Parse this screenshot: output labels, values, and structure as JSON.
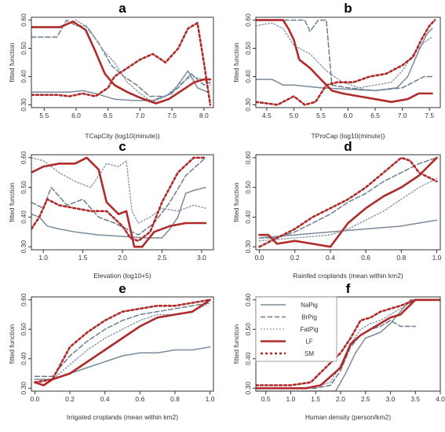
{
  "figure": {
    "ylabel": "fitted function",
    "legend_title": "",
    "colors": {
      "NaPig": "#7a8a9a",
      "BrPig": "#6b7d90",
      "FatPig": "#8795a5",
      "LF": "#b02a2a",
      "SM": "#b02a2a"
    }
  },
  "legend": {
    "items": [
      {
        "name": "NaPig",
        "style": "solid-thin",
        "color": "#7a8a9a"
      },
      {
        "name": "BrPig",
        "style": "dashed",
        "color": "#6b7d90"
      },
      {
        "name": "FatPig",
        "style": "dotted",
        "color": "#8795a5"
      },
      {
        "name": "LF",
        "style": "solid-thick",
        "color": "#b02a2a"
      },
      {
        "name": "SM",
        "style": "dotted-thick",
        "color": "#b02a2a"
      }
    ]
  },
  "chart_data": [
    {
      "panel": "a",
      "type": "line",
      "xlabel": "TCapCity (log10(minute))",
      "ylabel": "fitted function",
      "xlim": [
        5.3,
        8.15
      ],
      "ylim": [
        0.29,
        0.61
      ],
      "xticks": [
        "5.5",
        "6.0",
        "6.5",
        "7.0",
        "7.5",
        "8.0"
      ],
      "yticks": [
        "0.30",
        "0.40",
        "0.50",
        "0.60"
      ],
      "series": [
        {
          "name": "NaPig",
          "x": [
            5.3,
            5.6,
            5.9,
            6.1,
            6.3,
            6.6,
            6.9,
            7.2,
            7.5,
            7.75,
            7.9,
            8.05
          ],
          "y": [
            0.345,
            0.345,
            0.345,
            0.35,
            0.34,
            0.32,
            0.315,
            0.315,
            0.34,
            0.42,
            0.36,
            0.345
          ]
        },
        {
          "name": "BrPig",
          "x": [
            5.3,
            5.7,
            5.85,
            6.0,
            6.15,
            6.35,
            6.55,
            6.75,
            6.95,
            7.15,
            7.4,
            7.6,
            7.8,
            8.0,
            8.1
          ],
          "y": [
            0.54,
            0.54,
            0.6,
            0.58,
            0.58,
            0.52,
            0.44,
            0.4,
            0.37,
            0.33,
            0.33,
            0.36,
            0.41,
            0.37,
            0.38
          ]
        },
        {
          "name": "FatPig",
          "x": [
            5.9,
            6.0,
            6.2,
            6.4,
            6.6,
            6.8,
            7.0,
            7.2,
            7.4,
            7.6,
            7.8,
            8.0,
            8.1
          ],
          "y": [
            0.59,
            0.6,
            0.57,
            0.5,
            0.45,
            0.38,
            0.34,
            0.31,
            0.33,
            0.37,
            0.4,
            0.39,
            0.37
          ]
        },
        {
          "name": "LF",
          "x": [
            5.3,
            5.75,
            5.95,
            6.15,
            6.3,
            6.45,
            6.6,
            6.8,
            7.0,
            7.25,
            7.45,
            7.65,
            7.85,
            8.0,
            8.1
          ],
          "y": [
            0.575,
            0.575,
            0.595,
            0.565,
            0.49,
            0.41,
            0.37,
            0.345,
            0.325,
            0.305,
            0.32,
            0.35,
            0.38,
            0.39,
            0.39
          ]
        },
        {
          "name": "SM",
          "x": [
            5.3,
            5.7,
            5.9,
            6.1,
            6.3,
            6.5,
            6.6,
            6.8,
            7.0,
            7.2,
            7.4,
            7.6,
            7.75,
            7.9,
            8.0,
            8.1
          ],
          "y": [
            0.335,
            0.335,
            0.33,
            0.34,
            0.33,
            0.36,
            0.4,
            0.43,
            0.46,
            0.48,
            0.45,
            0.5,
            0.57,
            0.59,
            0.45,
            0.3
          ]
        }
      ]
    },
    {
      "panel": "b",
      "type": "line",
      "xlabel": "TProCap (log10(minute))",
      "ylabel": "fitted function",
      "xlim": [
        4.3,
        7.7
      ],
      "ylim": [
        0.29,
        0.61
      ],
      "xticks": [
        "4.5",
        "5.0",
        "5.5",
        "6.0",
        "6.5",
        "7.0",
        "7.5"
      ],
      "yticks": [
        "0.30",
        "0.40",
        "0.50",
        "0.60"
      ],
      "series": [
        {
          "name": "NaPig",
          "x": [
            4.3,
            4.6,
            4.8,
            5.0,
            5.5,
            6.0,
            6.5,
            6.9,
            7.1,
            7.3,
            7.45,
            7.55
          ],
          "y": [
            0.39,
            0.39,
            0.37,
            0.37,
            0.36,
            0.355,
            0.35,
            0.36,
            0.4,
            0.49,
            0.55,
            0.57
          ]
        },
        {
          "name": "BrPig",
          "x": [
            4.3,
            5.2,
            5.3,
            5.45,
            5.6,
            5.7,
            6.0,
            6.5,
            7.0,
            7.2,
            7.4,
            7.55
          ],
          "y": [
            0.6,
            0.6,
            0.56,
            0.6,
            0.6,
            0.37,
            0.36,
            0.35,
            0.36,
            0.38,
            0.4,
            0.4
          ]
        },
        {
          "name": "FatPig",
          "x": [
            4.3,
            4.6,
            4.8,
            5.0,
            5.3,
            5.6,
            5.9,
            6.2,
            6.5,
            6.8,
            7.0,
            7.2,
            7.4,
            7.55
          ],
          "y": [
            0.58,
            0.59,
            0.57,
            0.51,
            0.48,
            0.42,
            0.38,
            0.36,
            0.37,
            0.38,
            0.42,
            0.48,
            0.52,
            0.54
          ]
        },
        {
          "name": "LF",
          "x": [
            4.3,
            4.8,
            4.9,
            5.0,
            5.1,
            5.3,
            5.5,
            5.7,
            5.9,
            6.2,
            6.5,
            6.8,
            7.1,
            7.3,
            7.55
          ],
          "y": [
            0.6,
            0.6,
            0.57,
            0.53,
            0.46,
            0.43,
            0.39,
            0.35,
            0.34,
            0.33,
            0.32,
            0.31,
            0.32,
            0.34,
            0.34
          ]
        },
        {
          "name": "SM",
          "x": [
            4.3,
            4.7,
            5.0,
            5.2,
            5.4,
            5.6,
            5.8,
            6.1,
            6.4,
            6.7,
            7.0,
            7.2,
            7.35,
            7.5,
            7.6
          ],
          "y": [
            0.31,
            0.3,
            0.33,
            0.3,
            0.31,
            0.37,
            0.38,
            0.38,
            0.4,
            0.41,
            0.44,
            0.47,
            0.53,
            0.58,
            0.6
          ]
        }
      ]
    },
    {
      "panel": "c",
      "type": "line",
      "xlabel": "Elevation (log10+5)",
      "ylabel": "fitted function",
      "xlim": [
        0.85,
        3.15
      ],
      "ylim": [
        0.29,
        0.61
      ],
      "xticks": [
        "1.0",
        "1.5",
        "2.0",
        "2.5",
        "3.0"
      ],
      "yticks": [
        "0.30",
        "0.40",
        "0.50",
        "0.60"
      ],
      "series": [
        {
          "name": "NaPig",
          "x": [
            0.85,
            0.95,
            1.05,
            1.2,
            1.4,
            1.7,
            2.0,
            2.3,
            2.5,
            2.6,
            2.7,
            2.8,
            2.9,
            3.05
          ],
          "y": [
            0.41,
            0.4,
            0.37,
            0.36,
            0.35,
            0.34,
            0.335,
            0.33,
            0.33,
            0.36,
            0.4,
            0.48,
            0.49,
            0.5
          ]
        },
        {
          "name": "BrPig",
          "x": [
            0.85,
            1.0,
            1.1,
            1.3,
            1.5,
            1.7,
            1.9,
            2.05,
            2.2,
            2.4,
            2.6,
            2.8,
            3.05
          ],
          "y": [
            0.45,
            0.43,
            0.5,
            0.44,
            0.46,
            0.4,
            0.38,
            0.36,
            0.34,
            0.38,
            0.45,
            0.54,
            0.6
          ]
        },
        {
          "name": "FatPig",
          "x": [
            0.85,
            1.0,
            1.2,
            1.4,
            1.6,
            1.8,
            1.95,
            2.05,
            2.12,
            2.2,
            2.35,
            2.5,
            2.7,
            2.9,
            3.05
          ],
          "y": [
            0.6,
            0.59,
            0.55,
            0.52,
            0.5,
            0.58,
            0.57,
            0.59,
            0.42,
            0.38,
            0.4,
            0.43,
            0.42,
            0.44,
            0.43
          ]
        },
        {
          "name": "LF",
          "x": [
            0.85,
            1.0,
            1.2,
            1.4,
            1.55,
            1.7,
            1.8,
            1.95,
            2.05,
            2.15,
            2.25,
            2.4,
            2.6,
            2.8,
            3.05
          ],
          "y": [
            0.55,
            0.57,
            0.58,
            0.58,
            0.6,
            0.56,
            0.45,
            0.41,
            0.42,
            0.3,
            0.3,
            0.35,
            0.37,
            0.38,
            0.38
          ]
        },
        {
          "name": "SM",
          "x": [
            0.85,
            0.95,
            1.05,
            1.2,
            1.4,
            1.6,
            1.8,
            2.0,
            2.1,
            2.2,
            2.35,
            2.5,
            2.7,
            2.9,
            3.05
          ],
          "y": [
            0.36,
            0.4,
            0.46,
            0.44,
            0.43,
            0.42,
            0.42,
            0.37,
            0.33,
            0.32,
            0.35,
            0.45,
            0.55,
            0.6,
            0.6
          ]
        }
      ]
    },
    {
      "panel": "d",
      "type": "line",
      "xlabel": "Rainfed croplands (mean within km2)",
      "ylabel": "fitted function",
      "xlim": [
        -0.02,
        1.02
      ],
      "ylim": [
        0.29,
        0.61
      ],
      "xticks": [
        "0.0",
        "0.2",
        "0.4",
        "0.6",
        "0.8",
        "1.0"
      ],
      "yticks": [
        "0.30",
        "0.40",
        "0.50",
        "0.60"
      ],
      "series": [
        {
          "name": "NaPig",
          "x": [
            0.0,
            0.2,
            0.4,
            0.6,
            0.8,
            1.0
          ],
          "y": [
            0.33,
            0.34,
            0.35,
            0.36,
            0.37,
            0.39
          ]
        },
        {
          "name": "BrPig",
          "x": [
            0.0,
            0.1,
            0.2,
            0.3,
            0.4,
            0.5,
            0.6,
            0.7,
            0.8,
            0.9,
            1.0
          ],
          "y": [
            0.33,
            0.33,
            0.35,
            0.38,
            0.41,
            0.45,
            0.48,
            0.52,
            0.55,
            0.58,
            0.6
          ]
        },
        {
          "name": "FatPig",
          "x": [
            0.0,
            0.2,
            0.4,
            0.5,
            0.6,
            0.7,
            0.8,
            0.9,
            1.0
          ],
          "y": [
            0.32,
            0.33,
            0.34,
            0.36,
            0.39,
            0.42,
            0.46,
            0.5,
            0.53
          ]
        },
        {
          "name": "LF",
          "x": [
            0.0,
            0.05,
            0.1,
            0.2,
            0.3,
            0.4,
            0.45,
            0.5,
            0.6,
            0.7,
            0.8,
            0.9,
            1.0
          ],
          "y": [
            0.34,
            0.34,
            0.31,
            0.32,
            0.31,
            0.3,
            0.34,
            0.38,
            0.43,
            0.47,
            0.5,
            0.54,
            0.6
          ]
        },
        {
          "name": "SM",
          "x": [
            0.0,
            0.1,
            0.2,
            0.3,
            0.4,
            0.5,
            0.6,
            0.7,
            0.8,
            0.85,
            0.9,
            1.0
          ],
          "y": [
            0.3,
            0.33,
            0.36,
            0.4,
            0.43,
            0.46,
            0.5,
            0.55,
            0.6,
            0.59,
            0.55,
            0.52
          ]
        }
      ]
    },
    {
      "panel": "e",
      "type": "line",
      "xlabel": "Irrigated croplands (mean within km2)",
      "ylabel": "fitted function",
      "xlim": [
        -0.02,
        1.02
      ],
      "ylim": [
        0.29,
        0.61
      ],
      "xticks": [
        "0.0",
        "0.2",
        "0.4",
        "0.6",
        "0.8",
        "1.0"
      ],
      "yticks": [
        "0.30",
        "0.40",
        "0.50",
        "0.60"
      ],
      "series": [
        {
          "name": "NaPig",
          "x": [
            0.0,
            0.1,
            0.2,
            0.3,
            0.4,
            0.5,
            0.6,
            0.7,
            0.8,
            0.9,
            1.0
          ],
          "y": [
            0.33,
            0.33,
            0.35,
            0.37,
            0.39,
            0.41,
            0.42,
            0.42,
            0.43,
            0.43,
            0.44
          ]
        },
        {
          "name": "BrPig",
          "x": [
            0.0,
            0.1,
            0.2,
            0.3,
            0.4,
            0.5,
            0.6,
            0.7,
            0.8,
            0.9,
            1.0
          ],
          "y": [
            0.34,
            0.34,
            0.41,
            0.46,
            0.5,
            0.53,
            0.55,
            0.56,
            0.57,
            0.58,
            0.59
          ]
        },
        {
          "name": "FatPig",
          "x": [
            0.0,
            0.1,
            0.2,
            0.3,
            0.4,
            0.5,
            0.6,
            0.7,
            0.8,
            0.9,
            1.0
          ],
          "y": [
            0.33,
            0.33,
            0.38,
            0.43,
            0.47,
            0.5,
            0.53,
            0.55,
            0.55,
            0.56,
            0.59
          ]
        },
        {
          "name": "LF",
          "x": [
            0.0,
            0.05,
            0.1,
            0.2,
            0.3,
            0.4,
            0.5,
            0.6,
            0.7,
            0.8,
            0.9,
            1.0
          ],
          "y": [
            0.32,
            0.31,
            0.33,
            0.35,
            0.39,
            0.43,
            0.47,
            0.51,
            0.54,
            0.55,
            0.56,
            0.6
          ]
        },
        {
          "name": "SM",
          "x": [
            0.0,
            0.1,
            0.2,
            0.3,
            0.4,
            0.5,
            0.6,
            0.7,
            0.8,
            0.9,
            1.0
          ],
          "y": [
            0.32,
            0.33,
            0.44,
            0.49,
            0.53,
            0.56,
            0.57,
            0.58,
            0.58,
            0.59,
            0.6
          ]
        }
      ]
    },
    {
      "panel": "f",
      "type": "line",
      "xlabel": "Human density (person/km2)",
      "ylabel": "fitted function",
      "xlim": [
        0.3,
        4.0
      ],
      "ylim": [
        0.29,
        0.61
      ],
      "xticks": [
        "0.5",
        "1.0",
        "1.5",
        "2.0",
        "2.5",
        "3.0",
        "3.5",
        "4.0"
      ],
      "yticks": [
        "0.30",
        "0.40",
        "0.50",
        "0.60"
      ],
      "series": [
        {
          "name": "NaPig",
          "x": [
            0.3,
            1.5,
            1.9,
            2.1,
            2.3,
            2.5,
            2.8,
            3.0,
            3.2,
            3.4,
            3.5
          ],
          "y": [
            0.29,
            0.29,
            0.29,
            0.35,
            0.42,
            0.47,
            0.49,
            0.52,
            0.56,
            0.6,
            0.6
          ]
        },
        {
          "name": "BrPig",
          "x": [
            0.3,
            1.5,
            1.8,
            2.0,
            2.2,
            2.4,
            2.6,
            2.8,
            3.0,
            3.2,
            3.5
          ],
          "y": [
            0.3,
            0.3,
            0.31,
            0.36,
            0.44,
            0.48,
            0.5,
            0.51,
            0.53,
            0.51,
            0.51
          ]
        },
        {
          "name": "FatPig",
          "x": [
            0.3,
            1.4,
            1.8,
            2.0,
            2.2,
            2.4,
            2.6,
            2.8,
            3.0,
            3.2,
            3.5
          ],
          "y": [
            0.3,
            0.3,
            0.32,
            0.38,
            0.45,
            0.5,
            0.52,
            0.53,
            0.55,
            0.57,
            0.6
          ]
        },
        {
          "name": "LF",
          "x": [
            0.3,
            1.3,
            1.6,
            1.8,
            2.0,
            2.2,
            2.4,
            2.6,
            2.8,
            3.0,
            3.2,
            3.5,
            3.8,
            4.0
          ],
          "y": [
            0.3,
            0.3,
            0.31,
            0.34,
            0.37,
            0.45,
            0.48,
            0.5,
            0.52,
            0.54,
            0.55,
            0.6,
            0.6,
            0.6
          ]
        },
        {
          "name": "SM",
          "x": [
            0.3,
            1.0,
            1.4,
            1.7,
            2.0,
            2.2,
            2.4,
            2.6,
            2.8,
            3.0,
            3.2,
            3.5,
            4.0
          ],
          "y": [
            0.31,
            0.31,
            0.32,
            0.37,
            0.42,
            0.47,
            0.53,
            0.54,
            0.56,
            0.57,
            0.58,
            0.6,
            0.6
          ]
        }
      ]
    }
  ]
}
